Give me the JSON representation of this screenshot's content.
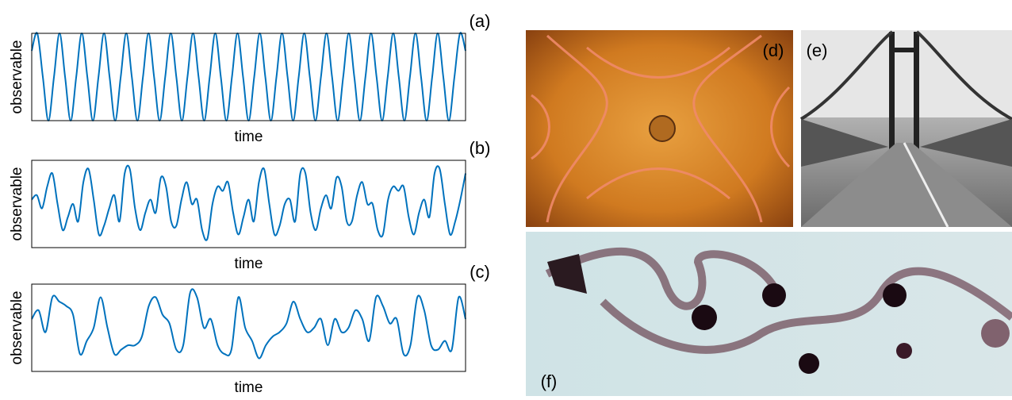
{
  "chart_data": [
    {
      "type": "line",
      "label": "(a)",
      "xlabel": "time",
      "ylabel": "observable",
      "color": "#0072bd",
      "ylim": [
        0,
        1
      ],
      "values": [
        0.8,
        1,
        0.5,
        0,
        0.5,
        1,
        0.5,
        0,
        0.5,
        1,
        0.5,
        0,
        0.5,
        1,
        0.5,
        0,
        0.5,
        1,
        0.5,
        0,
        0.5,
        1,
        0.5,
        0,
        0.5,
        1,
        0.5,
        0,
        0.5,
        1,
        0.5,
        0,
        0.5,
        1,
        0.5,
        0,
        0.5,
        1,
        0.5,
        0,
        0.5,
        1,
        0.5,
        0,
        0.5,
        1,
        0.5,
        0,
        0.5,
        1,
        0.5,
        0,
        0.5,
        1,
        0.5,
        0,
        0.5,
        1,
        0.5,
        0,
        0.5,
        1,
        0.5,
        0,
        0.5,
        1,
        0.5,
        0,
        0.5,
        1,
        0.5,
        0,
        0.5,
        1,
        0.5,
        0,
        0.5,
        1,
        0.8
      ]
    },
    {
      "type": "line",
      "label": "(b)",
      "xlabel": "time",
      "ylabel": "observable",
      "color": "#0072bd",
      "ylim": [
        0,
        1
      ],
      "values": [
        0.55,
        0.6,
        0.45,
        0.7,
        0.85,
        0.5,
        0.2,
        0.35,
        0.5,
        0.3,
        0.75,
        0.9,
        0.55,
        0.15,
        0.25,
        0.45,
        0.6,
        0.3,
        0.85,
        0.9,
        0.45,
        0.2,
        0.4,
        0.55,
        0.4,
        0.8,
        0.7,
        0.3,
        0.25,
        0.55,
        0.75,
        0.5,
        0.55,
        0.2,
        0.1,
        0.5,
        0.7,
        0.65,
        0.75,
        0.4,
        0.15,
        0.35,
        0.55,
        0.3,
        0.75,
        0.9,
        0.5,
        0.15,
        0.25,
        0.5,
        0.55,
        0.3,
        0.85,
        0.85,
        0.4,
        0.2,
        0.45,
        0.6,
        0.45,
        0.8,
        0.7,
        0.3,
        0.3,
        0.6,
        0.75,
        0.5,
        0.5,
        0.2,
        0.15,
        0.55,
        0.7,
        0.65,
        0.7,
        0.35,
        0.15,
        0.4,
        0.55,
        0.35,
        0.85,
        0.9,
        0.5,
        0.15,
        0.3,
        0.55,
        0.85
      ]
    },
    {
      "type": "line",
      "label": "(c)",
      "xlabel": "time",
      "ylabel": "observable",
      "color": "#0072bd",
      "ylim": [
        0,
        1
      ],
      "values": [
        0.6,
        0.7,
        0.45,
        0.85,
        0.8,
        0.75,
        0.65,
        0.2,
        0.35,
        0.5,
        0.85,
        0.5,
        0.2,
        0.25,
        0.3,
        0.3,
        0.4,
        0.75,
        0.85,
        0.65,
        0.55,
        0.25,
        0.3,
        0.9,
        0.85,
        0.5,
        0.6,
        0.3,
        0.2,
        0.25,
        0.85,
        0.5,
        0.35,
        0.15,
        0.3,
        0.4,
        0.45,
        0.55,
        0.8,
        0.6,
        0.45,
        0.5,
        0.6,
        0.3,
        0.6,
        0.45,
        0.5,
        0.7,
        0.6,
        0.35,
        0.85,
        0.75,
        0.55,
        0.6,
        0.2,
        0.3,
        0.85,
        0.7,
        0.3,
        0.25,
        0.35,
        0.25,
        0.85,
        0.6
      ]
    }
  ],
  "photos": [
    {
      "label": "(d)"
    },
    {
      "label": "(e)"
    },
    {
      "label": "(f)"
    }
  ]
}
